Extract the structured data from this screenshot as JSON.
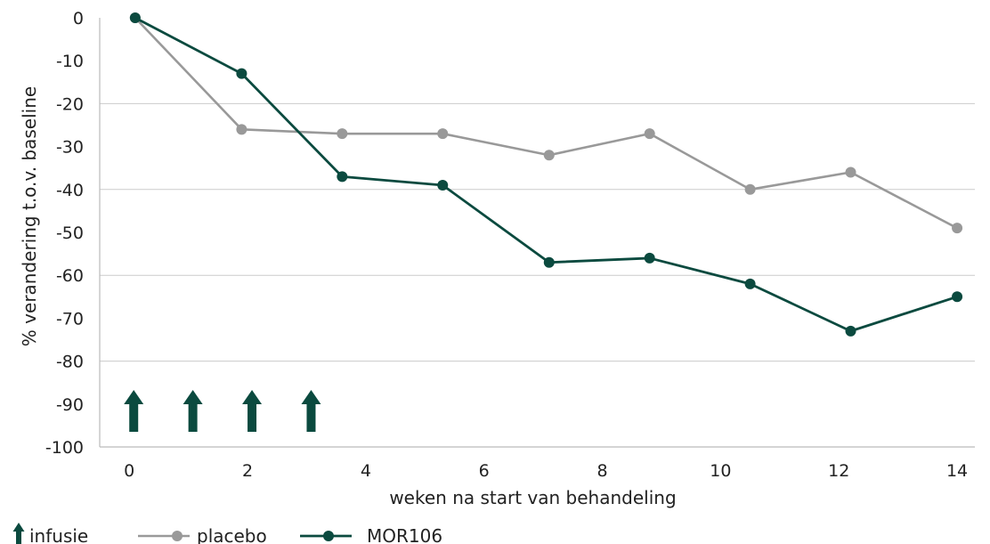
{
  "chart_data": {
    "type": "line",
    "title": "",
    "xlabel": "weken na start van behandeling",
    "ylabel": "% verandering t.o.v. baseline",
    "xlim": [
      -0.5,
      14.3
    ],
    "ylim": [
      -100,
      0
    ],
    "xticks": [
      0,
      2,
      4,
      6,
      8,
      10,
      12,
      14
    ],
    "yticks": [
      0,
      -10,
      -20,
      -30,
      -40,
      -50,
      -60,
      -70,
      -80,
      -90,
      -100
    ],
    "grid": true,
    "legend_position": "bottom-left",
    "series": [
      {
        "name": "placebo",
        "color": "#999999",
        "x": [
          0.1,
          1.9,
          3.6,
          5.3,
          7.1,
          8.8,
          10.5,
          12.2,
          14.0
        ],
        "y": [
          0,
          -26,
          -27,
          -27,
          -32,
          -27,
          -40,
          -36,
          -49
        ]
      },
      {
        "name": "MOR106",
        "color": "#0b4a3f",
        "x": [
          0.1,
          1.9,
          3.6,
          5.3,
          7.1,
          8.8,
          10.5,
          12.2,
          14.0
        ],
        "y": [
          0,
          -13,
          -37,
          -39,
          -57,
          -56,
          -62,
          -73,
          -65
        ]
      }
    ],
    "infusions": {
      "name": "infusie",
      "color": "#0b4a3f",
      "x": [
        0,
        1,
        2,
        3
      ]
    }
  }
}
